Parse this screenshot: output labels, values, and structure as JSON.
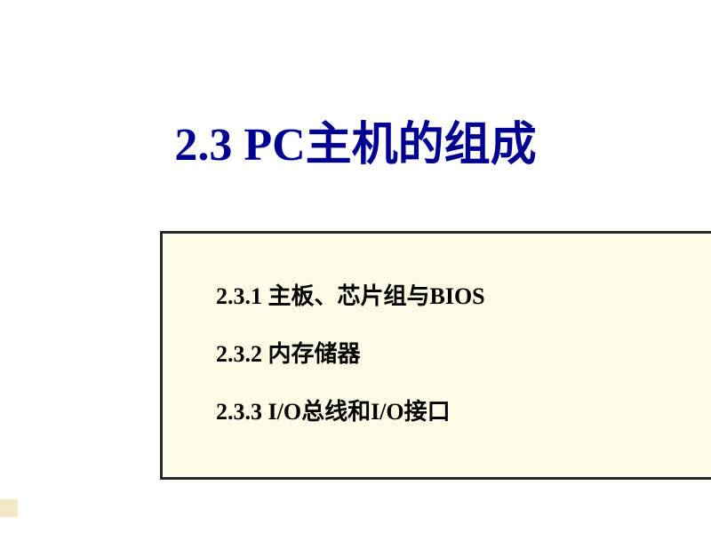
{
  "slide": {
    "title": "2.3   PC主机的组成",
    "background_color": "#ffffff",
    "title_color": "#000091",
    "title_fontsize": 52,
    "content_box": {
      "background_color": "#fdfae6",
      "border_color": "#2a2a2a",
      "border_width": 3,
      "items": [
        "2.3.1  主板、芯片组与BIOS",
        "2.3.2  内存储器",
        "2.3.3  I/O总线和I/O接口"
      ],
      "item_fontsize": 26,
      "item_color": "#000000"
    },
    "accent_bar_color": "#f5e8c8"
  }
}
